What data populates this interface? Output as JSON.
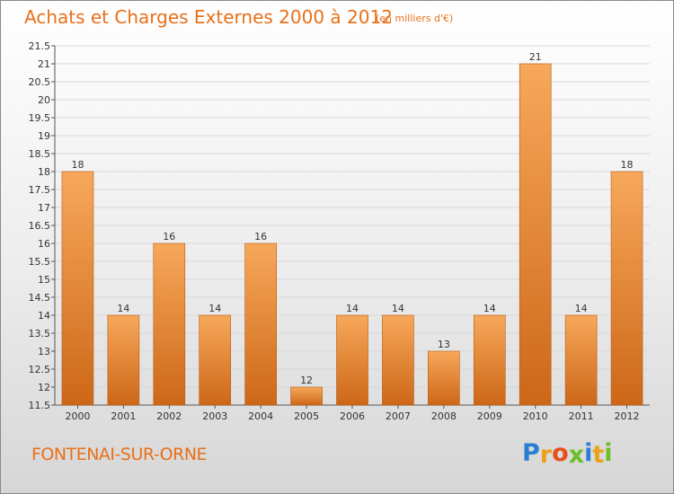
{
  "header": {
    "title": "Achats et Charges Externes 2000 à 2012",
    "subtitle": "(en milliers d'€)"
  },
  "footer": {
    "city": "FONTENAI-SUR-ORNE",
    "logo_letters": [
      {
        "ch": "P",
        "color": "#2a7fd4"
      },
      {
        "ch": "r",
        "color": "#e8a21a"
      },
      {
        "ch": "o",
        "color": "#e8501a"
      },
      {
        "ch": "x",
        "color": "#6cbf2a"
      },
      {
        "ch": "i",
        "color": "#2a7fd4"
      },
      {
        "ch": "t",
        "color": "#e8a21a"
      },
      {
        "ch": "i",
        "color": "#6cbf2a"
      }
    ]
  },
  "colors": {
    "bar_top": "#f7a85a",
    "bar_bottom": "#cd6718",
    "text_accent": "#e8701a"
  },
  "chart_data": {
    "type": "bar",
    "title": "Achats et Charges Externes 2000 à 2012",
    "subtitle": "(en milliers d'€)",
    "xlabel": "",
    "ylabel": "",
    "categories": [
      "2000",
      "2001",
      "2002",
      "2003",
      "2004",
      "2005",
      "2006",
      "2007",
      "2008",
      "2009",
      "2010",
      "2011",
      "2012"
    ],
    "values": [
      18,
      14,
      16,
      14,
      16,
      12,
      14,
      14,
      13,
      14,
      21,
      14,
      18
    ],
    "ylim": [
      11.5,
      21.5
    ],
    "yticks": [
      "11.5",
      "12",
      "12.5",
      "13",
      "13.5",
      "14",
      "14.5",
      "15",
      "15.5",
      "16",
      "16.5",
      "17",
      "17.5",
      "18",
      "18.5",
      "19",
      "19.5",
      "20",
      "20.5",
      "21",
      "21.5"
    ],
    "grid": true,
    "legend": "none"
  }
}
